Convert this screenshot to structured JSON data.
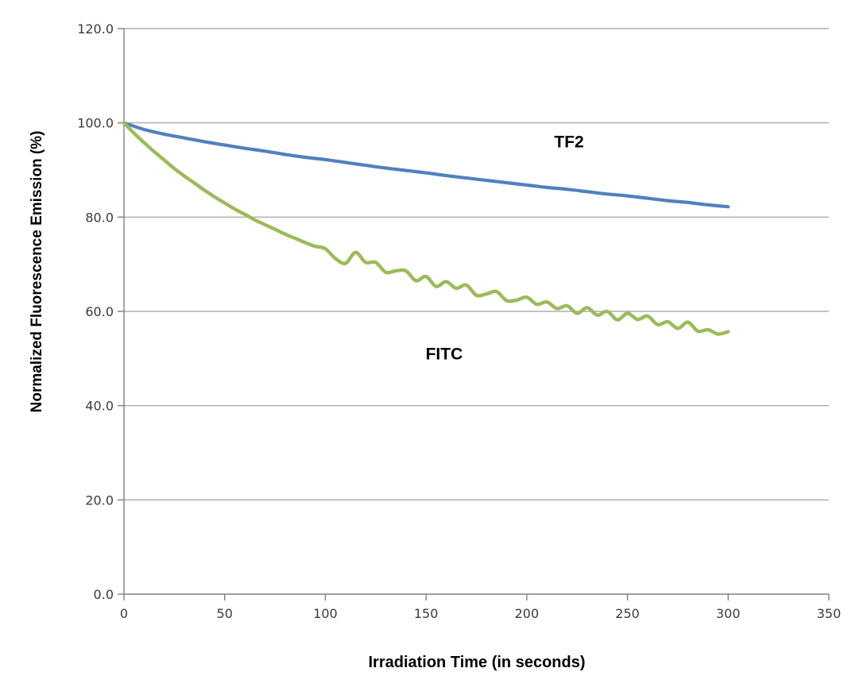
{
  "figure": {
    "background_color": "#ffffff",
    "gridline_color": "#9c9c9c",
    "axis_color": "#808080",
    "tick_label_color": "#3a3a3a"
  },
  "chart_data": {
    "type": "line",
    "title": "",
    "xlabel": "Irradiation Time (in seconds)",
    "ylabel": "Normalized Fluorescence Emission (%)",
    "xlim": [
      0,
      350
    ],
    "ylim": [
      0,
      120
    ],
    "x_ticks": [
      0,
      50,
      100,
      150,
      200,
      250,
      300,
      350
    ],
    "x_tick_labels": [
      "0",
      "50",
      "100",
      "150",
      "200",
      "250",
      "300",
      "350"
    ],
    "y_ticks": [
      0,
      20,
      40,
      60,
      80,
      100,
      120
    ],
    "y_tick_labels": [
      "0.0",
      "20.0",
      "40.0",
      "60.0",
      "80.0",
      "100.0",
      "120.0"
    ],
    "grid": true,
    "legend_position": "none",
    "annotations": [
      {
        "text": "TF2",
        "x": 221,
        "y": 96
      },
      {
        "text": "FITC",
        "x": 159,
        "y": 51
      }
    ],
    "series": [
      {
        "name": "TF2",
        "color": "#4F81BD",
        "line_width": 4.2,
        "x": [
          0,
          10,
          20,
          30,
          40,
          50,
          60,
          70,
          80,
          90,
          100,
          110,
          120,
          130,
          140,
          150,
          160,
          170,
          180,
          190,
          200,
          210,
          220,
          230,
          240,
          250,
          260,
          270,
          280,
          290,
          300
        ],
        "y": [
          100.0,
          98.6,
          97.6,
          96.8,
          96.0,
          95.3,
          94.6,
          94.0,
          93.3,
          92.7,
          92.2,
          91.6,
          91.0,
          90.4,
          89.9,
          89.4,
          88.8,
          88.3,
          87.8,
          87.3,
          86.8,
          86.3,
          85.9,
          85.4,
          84.9,
          84.5,
          84.0,
          83.5,
          83.1,
          82.6,
          82.2
        ]
      },
      {
        "name": "FITC",
        "color": "#9BBB59",
        "line_width": 4.4,
        "x": [
          0,
          5,
          10,
          15,
          20,
          25,
          30,
          35,
          40,
          45,
          50,
          55,
          60,
          65,
          70,
          75,
          80,
          85,
          90,
          95,
          100,
          105,
          110,
          115,
          120,
          125,
          130,
          135,
          140,
          145,
          150,
          155,
          160,
          165,
          170,
          175,
          180,
          185,
          190,
          195,
          200,
          205,
          210,
          215,
          220,
          225,
          230,
          235,
          240,
          245,
          250,
          255,
          260,
          265,
          270,
          275,
          280,
          285,
          290,
          295,
          300
        ],
        "y": [
          100.0,
          97.8,
          95.8,
          93.9,
          92.1,
          90.3,
          88.7,
          87.2,
          85.7,
          84.3,
          83.0,
          81.7,
          80.6,
          79.4,
          78.4,
          77.4,
          76.4,
          75.5,
          74.6,
          73.8,
          73.3,
          71.2,
          70.2,
          72.5,
          70.4,
          70.4,
          68.3,
          68.6,
          68.6,
          66.5,
          67.4,
          65.3,
          66.3,
          64.9,
          65.6,
          63.4,
          63.7,
          64.2,
          62.3,
          62.4,
          63.0,
          61.5,
          62.0,
          60.6,
          61.2,
          59.6,
          60.8,
          59.2,
          60.0,
          58.2,
          59.6,
          58.3,
          59.0,
          57.2,
          57.8,
          56.4,
          57.7,
          55.8,
          56.1,
          55.2,
          55.7
        ]
      }
    ]
  }
}
